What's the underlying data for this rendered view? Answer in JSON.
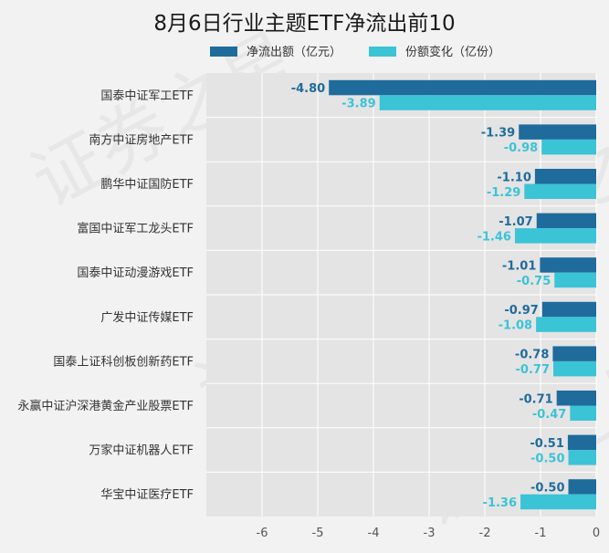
{
  "watermark": "证券之星",
  "chart_data": {
    "type": "bar",
    "orientation": "horizontal",
    "title": "8月6日行业主题ETF净流出前10",
    "xlabel": "",
    "ylabel": "",
    "xlim": [
      -7,
      0
    ],
    "xticks": [
      -6,
      -5,
      -4,
      -3,
      -2,
      -1,
      0
    ],
    "grid": true,
    "legend_position": "top",
    "categories": [
      "国泰中证军工ETF",
      "南方中证房地产ETF",
      "鹏华中证国防ETF",
      "富国中证军工龙头ETF",
      "国泰中证动漫游戏ETF",
      "广发中证传媒ETF",
      "国泰上证科创板创新药ETF",
      "永赢中证沪深港黄金产业股票ETF",
      "万家中证机器人ETF",
      "华宝中证医疗ETF"
    ],
    "series": [
      {
        "name": "净流出额（亿元）",
        "color": "#1f6b9c",
        "values": [
          -4.8,
          -1.39,
          -1.1,
          -1.07,
          -1.01,
          -0.97,
          -0.78,
          -0.71,
          -0.51,
          -0.5
        ],
        "labels": [
          "-4.80",
          "-1.39",
          "-1.10",
          "-1.07",
          "-1.01",
          "-0.97",
          "-0.78",
          "-0.71",
          "-0.51",
          "-0.50"
        ]
      },
      {
        "name": "份额变化（亿份）",
        "color": "#3bc3d6",
        "values": [
          -3.89,
          -0.98,
          -1.29,
          -1.46,
          -0.75,
          -1.08,
          -0.77,
          -0.47,
          -0.5,
          -1.36
        ],
        "labels": [
          "-3.89",
          "-0.98",
          "-1.29",
          "-1.46",
          "-0.75",
          "-1.08",
          "-0.77",
          "-0.47",
          "-0.50",
          "-1.36"
        ]
      }
    ]
  }
}
